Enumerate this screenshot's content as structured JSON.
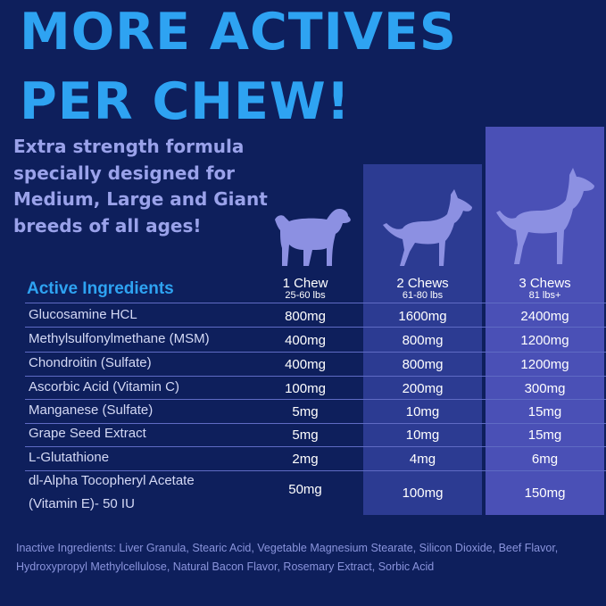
{
  "headline": {
    "line1": "MORE ACTIVES",
    "line2": "PER CHEW!"
  },
  "subtitle": "Extra strength formula specially designed for Medium, Large and Giant breeds of all ages!",
  "table": {
    "header_label": "Active Ingredients",
    "columns": [
      {
        "count": "1 Chew",
        "weight": "25-60 lbs"
      },
      {
        "count": "2 Chews",
        "weight": "61-80 lbs"
      },
      {
        "count": "3 Chews",
        "weight": "81 lbs+"
      }
    ],
    "rows": [
      {
        "name": "Glucosamine HCL",
        "values": [
          "800mg",
          "1600mg",
          "2400mg"
        ]
      },
      {
        "name": "Methylsulfonylmethane (MSM)",
        "values": [
          "400mg",
          "800mg",
          "1200mg"
        ]
      },
      {
        "name": "Chondroitin (Sulfate)",
        "values": [
          "400mg",
          "800mg",
          "1200mg"
        ]
      },
      {
        "name": "Ascorbic Acid (Vitamin C)",
        "values": [
          "100mg",
          "200mg",
          "300mg"
        ]
      },
      {
        "name": "Manganese (Sulfate)",
        "values": [
          "5mg",
          "10mg",
          "15mg"
        ]
      },
      {
        "name": "Grape Seed Extract",
        "values": [
          "5mg",
          "10mg",
          "15mg"
        ]
      },
      {
        "name": "L-Glutathione",
        "values": [
          "2mg",
          "4mg",
          "6mg"
        ]
      },
      {
        "name_line1": "dl-Alpha Tocopheryl Acetate",
        "name_line2": "(Vitamin E)- 50 IU",
        "values": [
          "50mg",
          "100mg",
          "150mg"
        ]
      }
    ]
  },
  "inactive_ingredients": "Inactive Ingredients: Liver Granula, Stearic Acid, Vegetable Magnesium Stearate, Silicon Dioxide, Beef Flavor, Hydroxypropyl Methylcellulose, Natural Bacon Flavor, Rosemary Extract, Sorbic Acid",
  "colors": {
    "background": "#0e1f5c",
    "headline": "#2ea3f2",
    "panel_2_chews": "#2c3b92",
    "panel_3_chews": "#4a50b6",
    "dog_silhouette": "#8c90e2"
  },
  "icons": [
    "medium-dog-icon",
    "large-dog-icon",
    "giant-dog-icon"
  ]
}
